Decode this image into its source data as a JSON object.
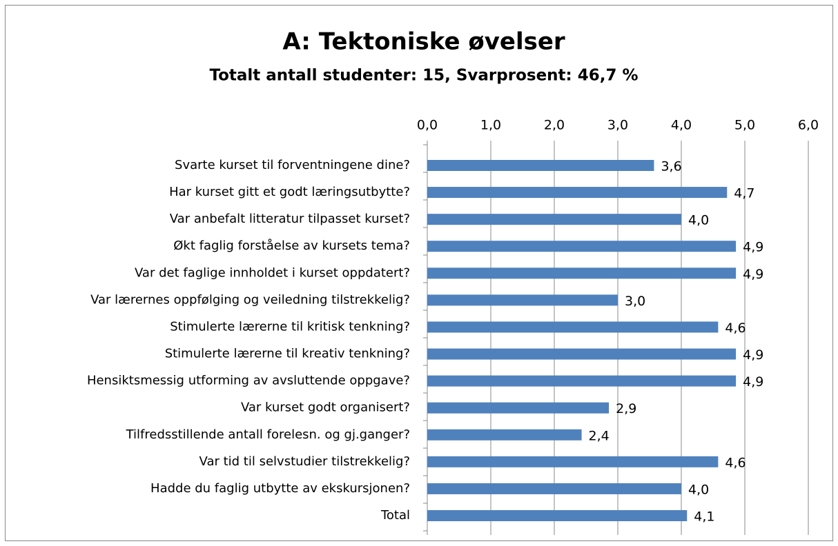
{
  "chart_data": {
    "type": "hbar",
    "title": "A: Tektoniske øvelser",
    "subtitle": "Totalt antall studenter: 15, Svarprosent: 46,7 %",
    "categories": [
      "Svarte kurset til forventningene dine?",
      "Har kurset gitt et godt læringsutbytte?",
      "Var anbefalt litteratur tilpasset kurset?",
      "Økt faglig forståelse av kursets tema?",
      "Var det faglige innholdet i kurset oppdatert?",
      "Var lærernes oppfølging og veiledning tilstrekkelig?",
      "Stimulerte lærerne til kritisk tenkning?",
      "Stimulerte lærerne til kreativ tenkning?",
      "Hensiktsmessig utforming av avsluttende oppgave?",
      "Var kurset godt organisert?",
      "Tilfredsstillende antall forelesn. og gj.ganger?",
      "Var tid til selvstudier tilstrekkelig?",
      "Hadde du faglig utbytte av ekskursjonen?",
      "Total"
    ],
    "values": [
      3.57,
      4.72,
      4.0,
      4.86,
      4.86,
      3.0,
      4.58,
      4.86,
      4.86,
      2.86,
      2.43,
      4.58,
      4.0,
      4.09
    ],
    "value_labels": [
      "3,6",
      "4,7",
      "4,0",
      "4,9",
      "4,9",
      "3,0",
      "4,6",
      "4,9",
      "4,9",
      "2,9",
      "2,4",
      "4,6",
      "4,0",
      "4,1"
    ],
    "color": "#4f81bd",
    "xlim": [
      0,
      6
    ],
    "xticks": [
      {
        "value": 0,
        "label": "0,0"
      },
      {
        "value": 1,
        "label": "1,0"
      },
      {
        "value": 2,
        "label": "2,0"
      },
      {
        "value": 3,
        "label": "3,0"
      },
      {
        "value": 4,
        "label": "4,0"
      },
      {
        "value": 5,
        "label": "5,0"
      },
      {
        "value": 6,
        "label": "6,0"
      }
    ],
    "grid": true
  }
}
